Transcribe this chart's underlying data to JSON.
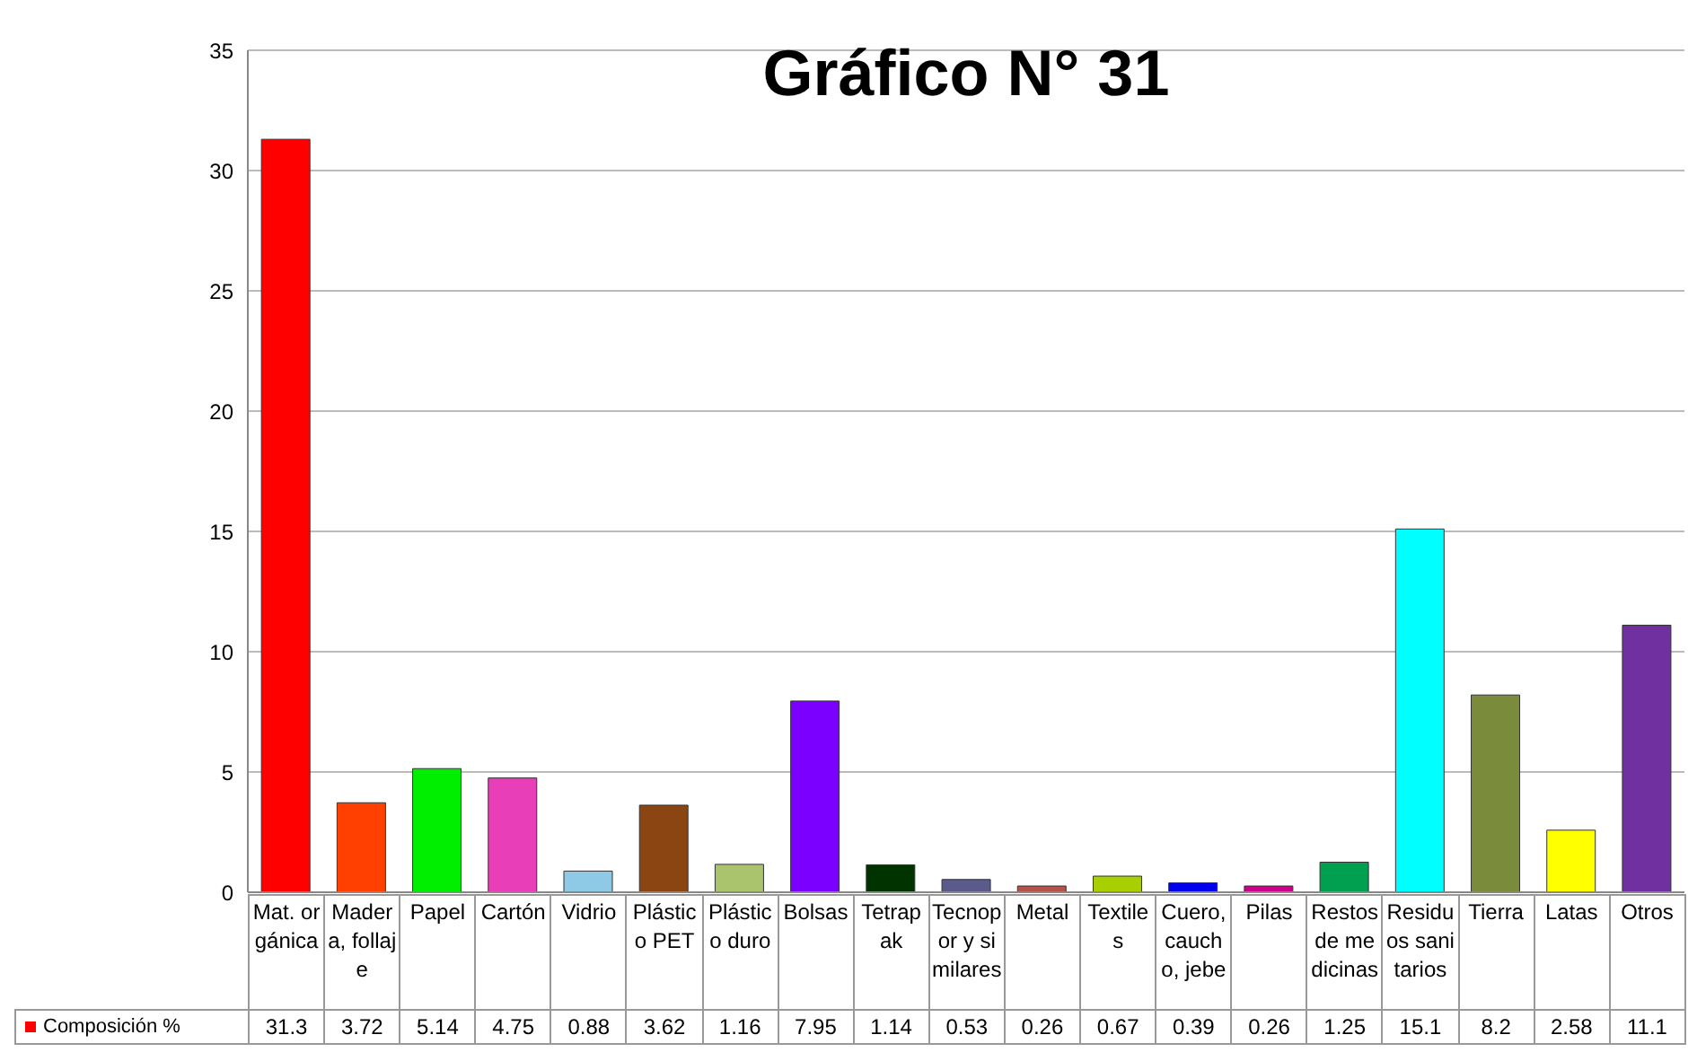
{
  "chart_data": {
    "type": "bar",
    "title": "Gráfico N° 31",
    "categories": [
      "Mat. orgánica",
      "Madera, follaje",
      "Papel",
      "Cartón",
      "Vidrio",
      "Plástico PET",
      "Plástico duro",
      "Bolsas",
      "Tetrapak",
      "Tecnopor y similares",
      "Metal",
      "Textiles",
      "Cuero, caucho, jebe",
      "Pilas",
      "Restos de medicinas",
      "Residuos sanitarios",
      "Tierra",
      "Latas",
      "Otros"
    ],
    "series": [
      {
        "name": "Composición %",
        "color": "#ff0000",
        "values": [
          31.3,
          3.72,
          5.14,
          4.75,
          0.88,
          3.62,
          1.16,
          7.95,
          1.14,
          0.53,
          0.26,
          0.67,
          0.39,
          0.26,
          1.25,
          15.1,
          8.2,
          2.58,
          11.1
        ],
        "colors": [
          "#ff0000",
          "#ff4000",
          "#00ee00",
          "#e83fb8",
          "#8ecae6",
          "#8b4513",
          "#a9c46c",
          "#7b00ff",
          "#003300",
          "#5a5a8c",
          "#b5524a",
          "#a8d000",
          "#0000ee",
          "#cc0088",
          "#00a050",
          "#00ffff",
          "#7a8c3c",
          "#ffff00",
          "#7030a0"
        ]
      }
    ],
    "ylim": [
      0,
      35
    ],
    "yticks": [
      0,
      5,
      10,
      15,
      20,
      25,
      30,
      35
    ],
    "grid": "y",
    "legend": "bottom",
    "data_labels": true
  }
}
